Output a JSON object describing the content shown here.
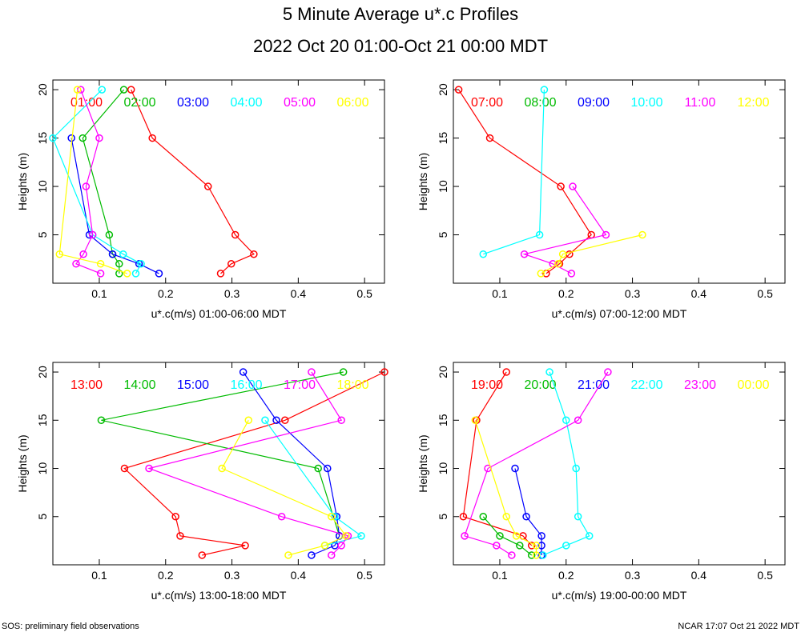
{
  "title": "5 Minute Average u*.c Profiles",
  "subtitle": "2022 Oct 20 01:00-Oct 21 00:00 MDT",
  "footer_left": "SOS: preliminary field observations",
  "footer_right": "NCAR 17:07 Oct 21 2022 MDT",
  "colors": [
    "#ff0000",
    "#00bb00",
    "#0000ff",
    "#00ffff",
    "#ff00ff",
    "#ffff00"
  ],
  "chart_data": [
    {
      "type": "line",
      "xlabel": "u*.c(m/s) 01:00-06:00 MDT",
      "ylabel": "Heights (m)",
      "xlim": [
        0.03,
        0.53
      ],
      "ylim": [
        0,
        21
      ],
      "xticks": [
        0.1,
        0.2,
        0.3,
        0.4,
        0.5
      ],
      "yticks": [
        5,
        10,
        15,
        20
      ],
      "series": [
        {
          "name": "01:00",
          "points": [
            [
              0.283,
              1
            ],
            [
              0.299,
              2
            ],
            [
              0.333,
              3
            ],
            [
              0.305,
              5
            ],
            [
              0.264,
              10
            ],
            [
              0.18,
              15
            ],
            [
              0.148,
              20
            ]
          ]
        },
        {
          "name": "02:00",
          "points": [
            [
              0.13,
              1
            ],
            [
              0.13,
              2
            ],
            [
              0.12,
              3
            ],
            [
              0.115,
              5
            ],
            [
              0.075,
              15
            ],
            [
              0.137,
              20
            ]
          ]
        },
        {
          "name": "03:00",
          "points": [
            [
              0.19,
              1
            ],
            [
              0.16,
              2
            ],
            [
              0.12,
              3
            ],
            [
              0.085,
              5
            ],
            [
              0.058,
              15
            ]
          ]
        },
        {
          "name": "04:00",
          "points": [
            [
              0.155,
              1
            ],
            [
              0.163,
              2
            ],
            [
              0.136,
              3
            ],
            [
              0.09,
              5
            ],
            [
              0.03,
              15
            ],
            [
              0.104,
              20
            ]
          ]
        },
        {
          "name": "05:00",
          "points": [
            [
              0.102,
              1
            ],
            [
              0.065,
              2
            ],
            [
              0.076,
              3
            ],
            [
              0.09,
              5
            ],
            [
              0.08,
              10
            ],
            [
              0.1,
              15
            ],
            [
              0.072,
              20
            ]
          ]
        },
        {
          "name": "06:00",
          "points": [
            [
              0.142,
              1
            ],
            [
              0.102,
              2
            ],
            [
              0.04,
              3
            ],
            [
              0.067,
              20
            ]
          ]
        }
      ]
    },
    {
      "type": "line",
      "xlabel": "u*.c(m/s) 07:00-12:00 MDT",
      "ylabel": "Heights (m)",
      "xlim": [
        0.03,
        0.53
      ],
      "ylim": [
        0,
        21
      ],
      "xticks": [
        0.1,
        0.2,
        0.3,
        0.4,
        0.5
      ],
      "yticks": [
        5,
        10,
        15,
        20
      ],
      "series": [
        {
          "name": "07:00",
          "points": [
            [
              0.17,
              1
            ],
            [
              0.19,
              2
            ],
            [
              0.205,
              3
            ],
            [
              0.238,
              5
            ],
            [
              0.192,
              10
            ],
            [
              0.085,
              15
            ],
            [
              0.038,
              20
            ]
          ]
        },
        {
          "name": "08:00",
          "points": []
        },
        {
          "name": "09:00",
          "points": []
        },
        {
          "name": "10:00",
          "points": [
            [
              0.075,
              3
            ],
            [
              0.16,
              5
            ],
            [
              0.167,
              20
            ]
          ]
        },
        {
          "name": "11:00",
          "points": [
            [
              0.208,
              1
            ],
            [
              0.18,
              2
            ],
            [
              0.137,
              3
            ],
            [
              0.26,
              5
            ],
            [
              0.21,
              10
            ]
          ]
        },
        {
          "name": "12:00",
          "points": [
            [
              0.162,
              1
            ],
            [
              0.188,
              2
            ],
            [
              0.195,
              3
            ],
            [
              0.315,
              5
            ]
          ]
        }
      ]
    },
    {
      "type": "line",
      "xlabel": "u*.c(m/s) 13:00-18:00 MDT",
      "ylabel": "Heights (m)",
      "xlim": [
        0.03,
        0.53
      ],
      "ylim": [
        0,
        21
      ],
      "xticks": [
        0.1,
        0.2,
        0.3,
        0.4,
        0.5
      ],
      "yticks": [
        5,
        10,
        15,
        20
      ],
      "series": [
        {
          "name": "13:00",
          "points": [
            [
              0.255,
              1
            ],
            [
              0.32,
              2
            ],
            [
              0.222,
              3
            ],
            [
              0.215,
              5
            ],
            [
              0.138,
              10
            ],
            [
              0.38,
              15
            ],
            [
              0.53,
              20
            ]
          ]
        },
        {
          "name": "14:00",
          "points": [
            [
              0.462,
              3
            ],
            [
              0.43,
              10
            ],
            [
              0.103,
              15
            ],
            [
              0.468,
              20
            ]
          ]
        },
        {
          "name": "15:00",
          "points": [
            [
              0.42,
              1
            ],
            [
              0.455,
              2
            ],
            [
              0.462,
              3
            ],
            [
              0.458,
              5
            ],
            [
              0.444,
              10
            ],
            [
              0.367,
              15
            ],
            [
              0.317,
              20
            ]
          ]
        },
        {
          "name": "16:00",
          "points": [
            [
              0.44,
              2
            ],
            [
              0.495,
              3
            ],
            [
              0.455,
              5
            ],
            [
              0.35,
              15
            ]
          ]
        },
        {
          "name": "17:00",
          "points": [
            [
              0.45,
              1
            ],
            [
              0.465,
              2
            ],
            [
              0.475,
              3
            ],
            [
              0.375,
              5
            ],
            [
              0.175,
              10
            ],
            [
              0.465,
              15
            ],
            [
              0.42,
              20
            ]
          ]
        },
        {
          "name": "18:00",
          "points": [
            [
              0.385,
              1
            ],
            [
              0.44,
              2
            ],
            [
              0.472,
              3
            ],
            [
              0.45,
              5
            ],
            [
              0.285,
              10
            ],
            [
              0.325,
              15
            ]
          ]
        }
      ]
    },
    {
      "type": "line",
      "xlabel": "u*.c(m/s) 19:00-00:00 MDT",
      "ylabel": "Heights (m)",
      "xlim": [
        0.03,
        0.53
      ],
      "ylim": [
        0,
        21
      ],
      "xticks": [
        0.1,
        0.2,
        0.3,
        0.4,
        0.5
      ],
      "yticks": [
        5,
        10,
        15,
        20
      ],
      "series": [
        {
          "name": "19:00",
          "points": [
            [
              0.148,
              2
            ],
            [
              0.135,
              3
            ],
            [
              0.045,
              5
            ],
            [
              0.065,
              15
            ],
            [
              0.11,
              20
            ]
          ]
        },
        {
          "name": "20:00",
          "points": [
            [
              0.148,
              1
            ],
            [
              0.13,
              2
            ],
            [
              0.1,
              3
            ],
            [
              0.075,
              5
            ]
          ]
        },
        {
          "name": "21:00",
          "points": [
            [
              0.163,
              1
            ],
            [
              0.163,
              2
            ],
            [
              0.163,
              3
            ],
            [
              0.14,
              5
            ],
            [
              0.123,
              10
            ]
          ]
        },
        {
          "name": "22:00",
          "points": [
            [
              0.165,
              1
            ],
            [
              0.2,
              2
            ],
            [
              0.235,
              3
            ],
            [
              0.218,
              5
            ],
            [
              0.215,
              10
            ],
            [
              0.2,
              15
            ],
            [
              0.175,
              20
            ]
          ]
        },
        {
          "name": "23:00",
          "points": [
            [
              0.118,
              1
            ],
            [
              0.095,
              2
            ],
            [
              0.047,
              3
            ],
            [
              0.082,
              10
            ],
            [
              0.218,
              15
            ],
            [
              0.263,
              20
            ]
          ]
        },
        {
          "name": "00:00",
          "points": [
            [
              0.155,
              1
            ],
            [
              0.155,
              2
            ],
            [
              0.125,
              3
            ],
            [
              0.11,
              5
            ],
            [
              0.063,
              15
            ]
          ]
        }
      ]
    }
  ]
}
